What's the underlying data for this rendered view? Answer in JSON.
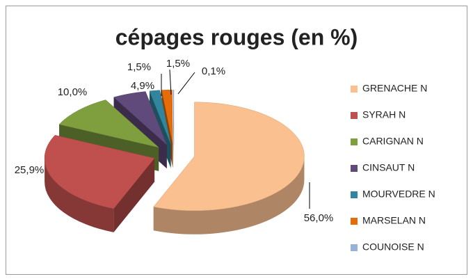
{
  "chart_data": {
    "type": "pie3d",
    "title": "cépages rouges (en %)",
    "categories": [
      "GRENACHE N",
      "SYRAH N",
      "CARIGNAN N",
      "CINSAUT N",
      "MOURVEDRE N",
      "MARSELAN N",
      "COUNOISE N"
    ],
    "values": [
      56.0,
      25.9,
      10.0,
      4.9,
      1.5,
      1.5,
      0.1
    ],
    "value_labels": [
      "56,0%",
      "25,9%",
      "10,0%",
      "4,9%",
      "1,5%",
      "1,5%",
      "0,1%"
    ],
    "colors": [
      "#fac090",
      "#c0504d",
      "#7f9f3f",
      "#604a7b",
      "#31859c",
      "#e46c0a",
      "#95b3d7"
    ],
    "legend": "right"
  }
}
